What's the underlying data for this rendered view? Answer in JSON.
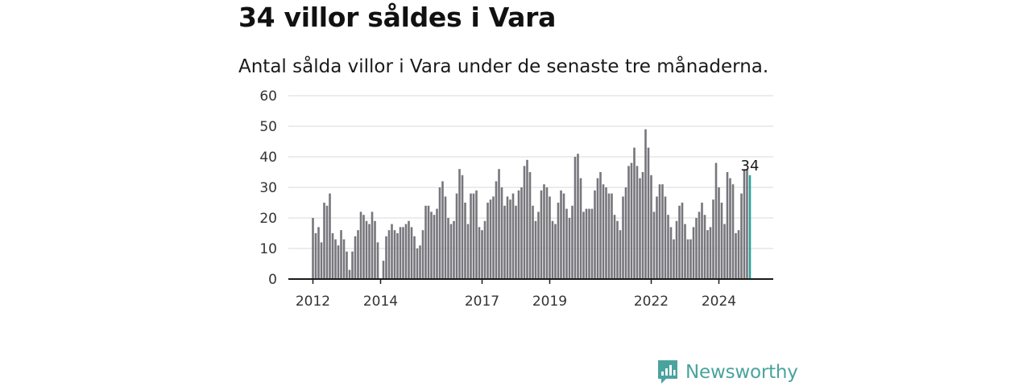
{
  "header": {
    "title": "34 villor såldes i Vara",
    "subtitle": "Antal sålda villor i Vara under de senaste tre månaderna."
  },
  "brand": {
    "name": "Newsworthy",
    "icon": "newsworthy-logo-icon",
    "color": "#4aa39e"
  },
  "chart_data": {
    "type": "bar",
    "title": "34 villor såldes i Vara",
    "subtitle": "Antal sålda villor i Vara under de senaste tre månaderna.",
    "xlabel": "",
    "ylabel": "",
    "ylim": [
      0,
      60
    ],
    "yticks": [
      0,
      10,
      20,
      30,
      40,
      50,
      60
    ],
    "xticks": [
      "2012",
      "2014",
      "2017",
      "2019",
      "2022",
      "2024"
    ],
    "grid": true,
    "bar_color": "#77767c",
    "highlight_color": "#2aa19b",
    "last_value_label": "34",
    "x_start": "2012-01",
    "frequency": "monthly",
    "values": [
      20,
      15,
      17,
      12,
      25,
      24,
      28,
      15,
      13,
      11,
      16,
      13,
      9,
      3,
      9,
      14,
      16,
      22,
      21,
      19,
      18,
      22,
      19,
      12,
      null,
      6,
      14,
      16,
      18,
      16,
      15,
      17,
      17,
      18,
      19,
      17,
      14,
      10,
      11,
      16,
      24,
      24,
      22,
      21,
      23,
      30,
      32,
      27,
      20,
      18,
      19,
      28,
      36,
      34,
      25,
      18,
      28,
      28,
      29,
      17,
      16,
      19,
      25,
      26,
      27,
      32,
      36,
      30,
      24,
      27,
      26,
      28,
      24,
      29,
      30,
      37,
      39,
      35,
      24,
      19,
      22,
      29,
      31,
      30,
      27,
      19,
      18,
      25,
      29,
      28,
      23,
      20,
      24,
      40,
      41,
      33,
      22,
      23,
      23,
      23,
      29,
      33,
      35,
      31,
      30,
      28,
      28,
      21,
      19,
      16,
      27,
      30,
      37,
      38,
      43,
      37,
      33,
      35,
      49,
      43,
      34,
      22,
      27,
      31,
      31,
      27,
      21,
      17,
      13,
      19,
      24,
      25,
      18,
      13,
      13,
      17,
      20,
      22,
      25,
      21,
      16,
      17,
      26,
      38,
      30,
      25,
      18,
      35,
      33,
      31,
      15,
      16,
      28,
      36,
      36,
      34
    ]
  }
}
